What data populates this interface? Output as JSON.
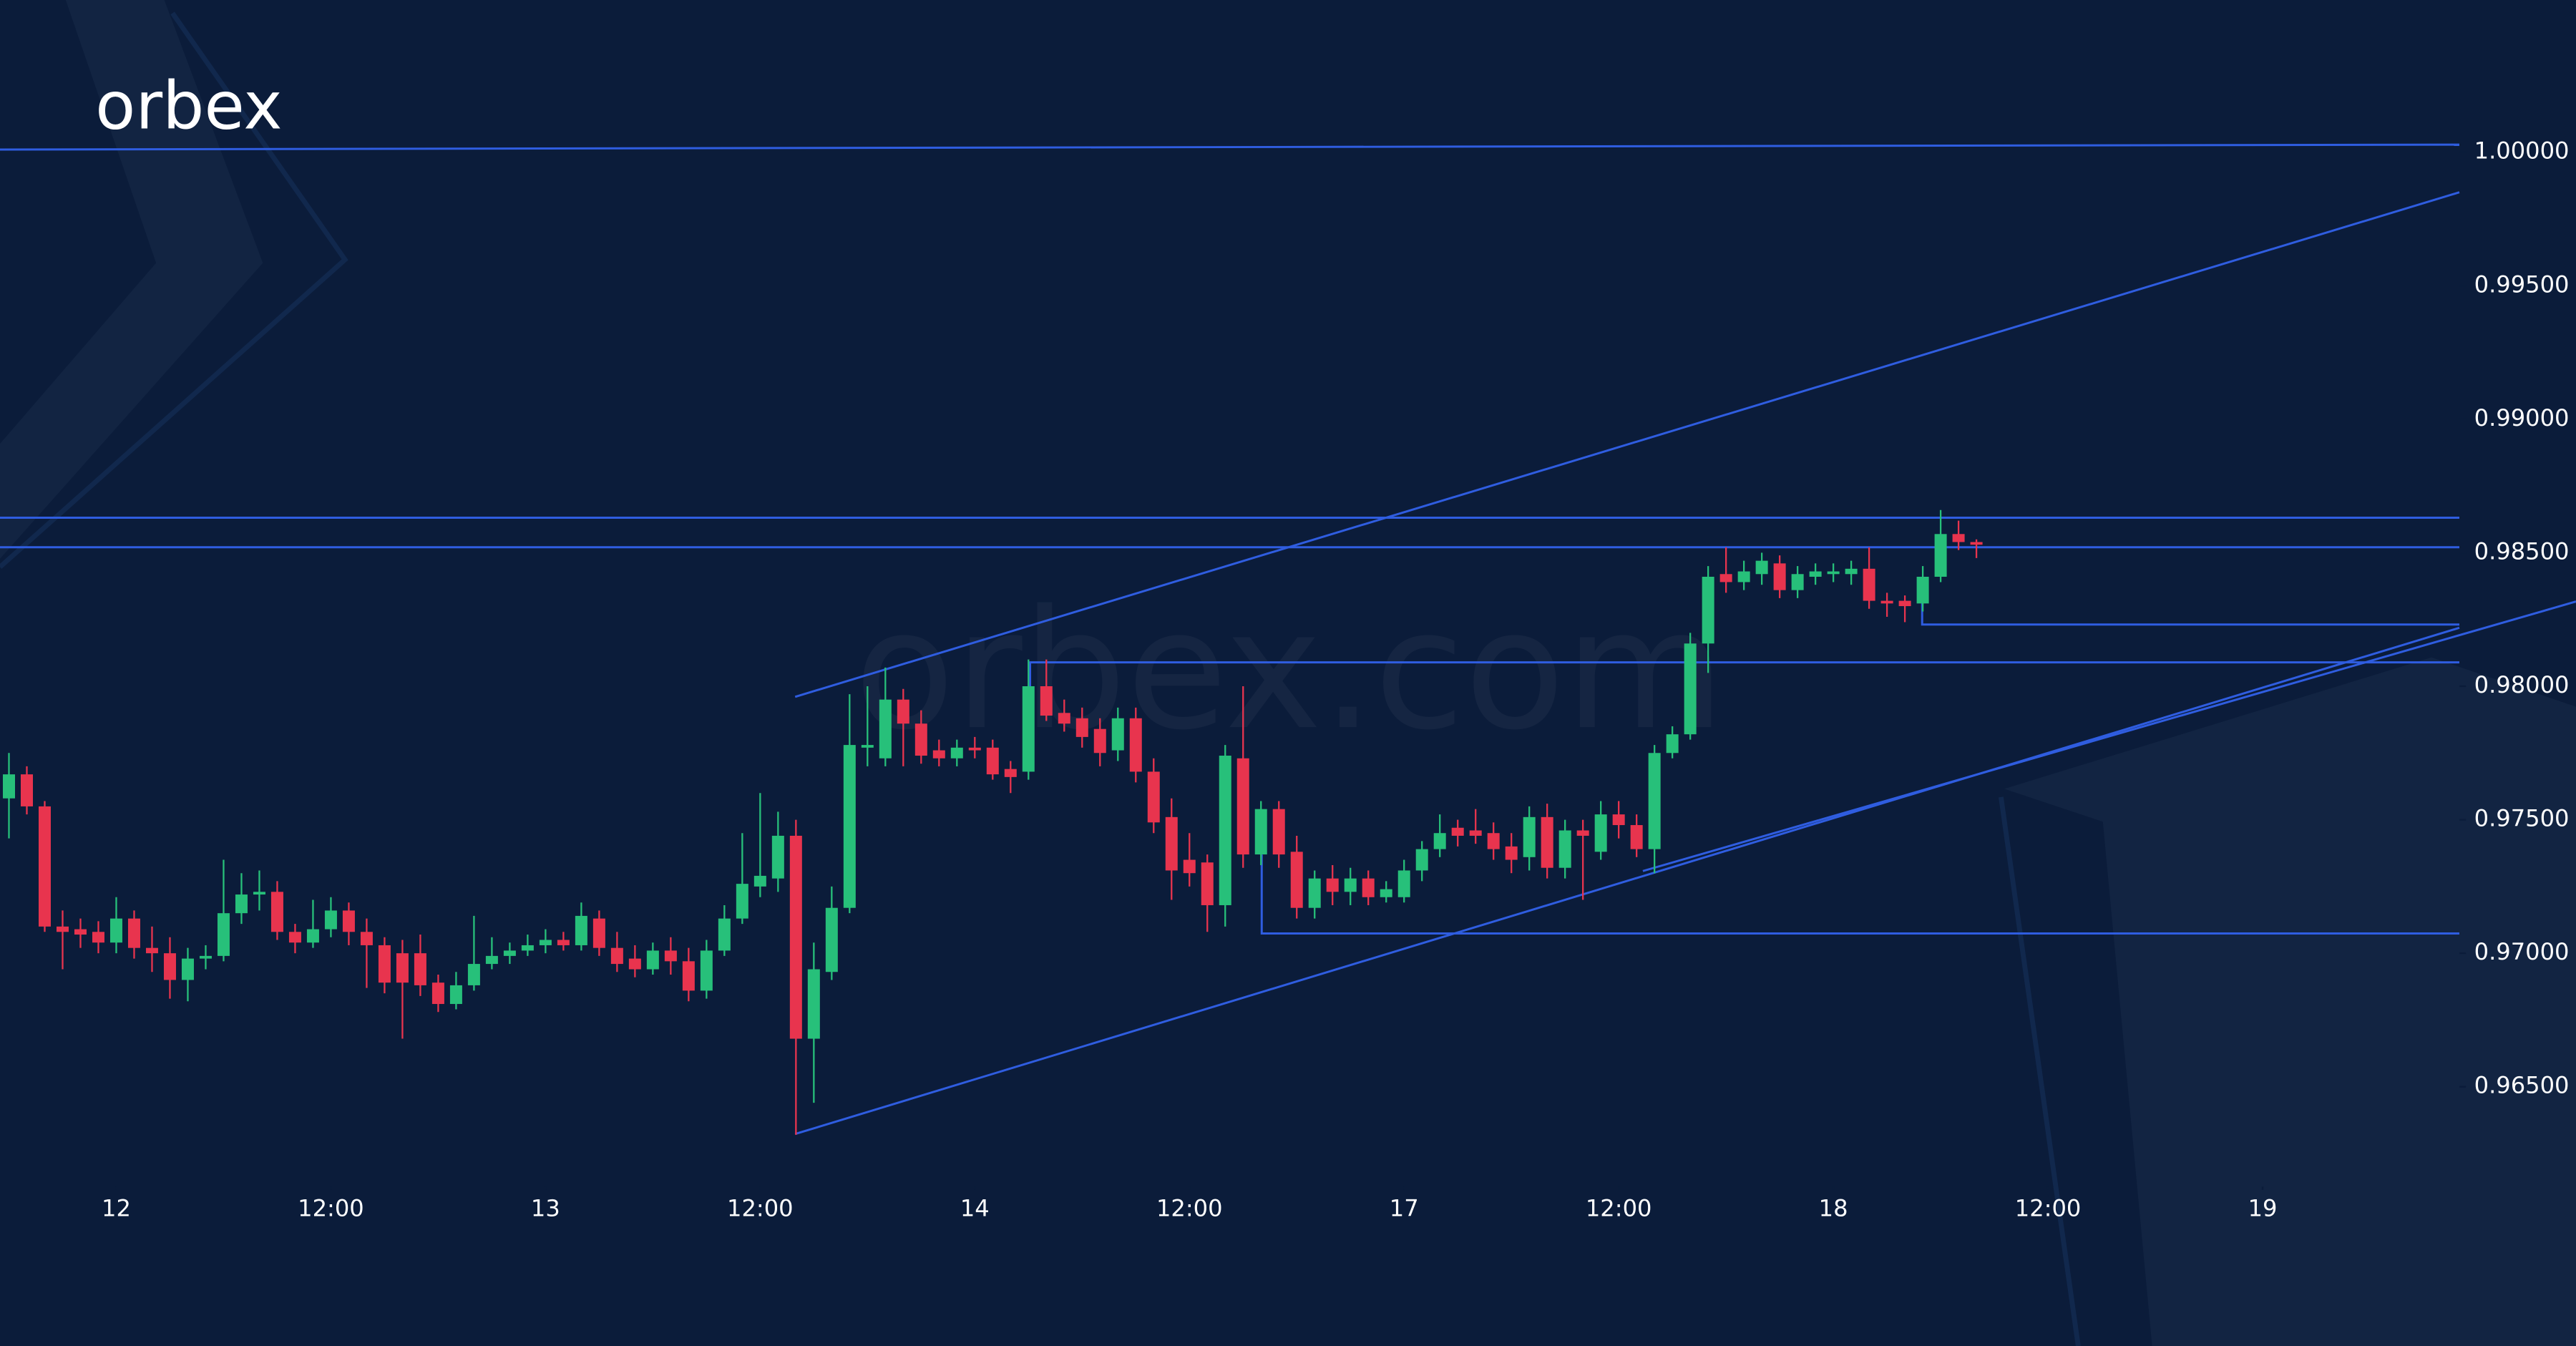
{
  "chart_data": {
    "type": "candlestick",
    "logo": "orbex",
    "watermark": "orbex.com",
    "up_color": "#27c07a",
    "down_color": "#e8344e",
    "x": [
      -6,
      -5,
      -4,
      -3,
      -2,
      -1,
      0,
      1,
      2,
      3,
      4,
      5,
      6,
      7,
      8,
      9,
      10,
      11,
      12,
      13,
      14,
      15,
      16,
      17,
      18,
      19,
      20,
      21,
      22,
      23,
      24,
      25,
      26,
      27,
      28,
      29,
      30,
      31,
      32,
      33,
      34,
      35,
      36,
      37,
      38,
      39,
      40,
      41,
      42,
      43,
      44,
      45,
      46,
      47,
      48,
      49,
      50,
      51,
      52,
      53,
      54,
      55,
      56,
      57,
      58,
      59,
      60,
      61,
      62,
      63,
      64,
      65,
      66,
      67,
      68,
      69,
      70,
      71,
      72,
      73,
      74,
      75,
      76,
      77,
      78,
      79,
      80,
      81,
      82,
      83,
      84,
      85,
      86,
      87,
      88,
      89,
      90,
      91,
      92,
      93,
      94,
      95,
      96,
      97,
      98,
      99,
      100,
      101,
      102,
      103,
      104
    ],
    "open": [
      0.9758,
      0.9767,
      0.9755,
      0.971,
      0.9709,
      0.9708,
      0.9704,
      0.9713,
      0.9702,
      0.97,
      0.969,
      0.9698,
      0.9699,
      0.9715,
      0.9722,
      0.9723,
      0.9708,
      0.9704,
      0.9709,
      0.9716,
      0.9708,
      0.9703,
      0.97,
      0.97,
      0.9689,
      0.9681,
      0.9688,
      0.9696,
      0.9699,
      0.9701,
      0.9703,
      0.9705,
      0.9703,
      0.9713,
      0.9702,
      0.9698,
      0.9694,
      0.9701,
      0.9697,
      0.9686,
      0.9701,
      0.9713,
      0.9725,
      0.9728,
      0.9744,
      0.9668,
      0.9693,
      0.9717,
      0.9777,
      0.9773,
      0.9795,
      0.9786,
      0.9776,
      0.9773,
      0.9777,
      0.9777,
      0.9769,
      0.9768,
      0.98,
      0.979,
      0.9788,
      0.9784,
      0.9776,
      0.9788,
      0.9768,
      0.9751,
      0.9735,
      0.9734,
      0.9718,
      0.9773,
      0.9737,
      0.9754,
      0.9738,
      0.9717,
      0.9728,
      0.9723,
      0.9728,
      0.9721,
      0.9721,
      0.9731,
      0.9739,
      0.9747,
      0.9746,
      0.9745,
      0.974,
      0.9736,
      0.9751,
      0.9732,
      0.9746,
      0.9738,
      0.9752,
      0.9748,
      0.9739,
      0.9775,
      0.9782,
      0.9816,
      0.9842,
      0.9839,
      0.9842,
      0.9846,
      0.9836,
      0.9841,
      0.9842,
      0.9842,
      0.9844,
      0.9832,
      0.9832,
      0.9831,
      0.9841,
      0.9857,
      0.9854
    ],
    "high": [
      0.9775,
      0.977,
      0.9757,
      0.9716,
      0.9713,
      0.9712,
      0.9721,
      0.9716,
      0.971,
      0.9706,
      0.9702,
      0.9703,
      0.9735,
      0.973,
      0.9731,
      0.9727,
      0.9711,
      0.972,
      0.9721,
      0.9719,
      0.9713,
      0.9706,
      0.9705,
      0.9707,
      0.9692,
      0.9693,
      0.9714,
      0.9706,
      0.9704,
      0.9707,
      0.9709,
      0.9708,
      0.9719,
      0.9716,
      0.9708,
      0.9703,
      0.9704,
      0.9706,
      0.9702,
      0.9705,
      0.9718,
      0.9745,
      0.976,
      0.9753,
      0.975,
      0.9704,
      0.9725,
      0.9797,
      0.98,
      0.9807,
      0.9799,
      0.9791,
      0.978,
      0.978,
      0.9781,
      0.978,
      0.9772,
      0.981,
      0.981,
      0.9795,
      0.9792,
      0.9788,
      0.9792,
      0.9792,
      0.9773,
      0.9758,
      0.9745,
      0.9737,
      0.9778,
      0.98,
      0.9757,
      0.9757,
      0.9744,
      0.9731,
      0.9733,
      0.9732,
      0.9731,
      0.9727,
      0.9735,
      0.9742,
      0.9752,
      0.975,
      0.9754,
      0.9749,
      0.9745,
      0.9755,
      0.9756,
      0.975,
      0.975,
      0.9757,
      0.9757,
      0.9752,
      0.9778,
      0.9785,
      0.982,
      0.9845,
      0.9852,
      0.9847,
      0.985,
      0.9849,
      0.9845,
      0.9846,
      0.9846,
      0.9847,
      0.9852,
      0.9835,
      0.9834,
      0.9845,
      0.9866,
      0.9862,
      0.9855
    ],
    "low": [
      0.9743,
      0.9752,
      0.9708,
      0.9694,
      0.9702,
      0.97,
      0.97,
      0.9698,
      0.9693,
      0.9683,
      0.9682,
      0.9694,
      0.9697,
      0.9711,
      0.9716,
      0.9705,
      0.97,
      0.9702,
      0.9706,
      0.9703,
      0.9687,
      0.9685,
      0.9668,
      0.9684,
      0.9678,
      0.9679,
      0.9686,
      0.9694,
      0.9696,
      0.9699,
      0.97,
      0.9701,
      0.9701,
      0.9699,
      0.9693,
      0.9691,
      0.9692,
      0.9692,
      0.9682,
      0.9683,
      0.9699,
      0.9711,
      0.9721,
      0.9723,
      0.9632,
      0.9644,
      0.969,
      0.9715,
      0.977,
      0.977,
      0.977,
      0.9771,
      0.977,
      0.977,
      0.9773,
      0.9765,
      0.976,
      0.9765,
      0.9787,
      0.9783,
      0.9777,
      0.977,
      0.9772,
      0.9764,
      0.9745,
      0.972,
      0.9725,
      0.9708,
      0.971,
      0.9732,
      0.9733,
      0.9732,
      0.9713,
      0.9713,
      0.9718,
      0.9718,
      0.9718,
      0.9719,
      0.9719,
      0.9727,
      0.9736,
      0.974,
      0.9741,
      0.9735,
      0.973,
      0.9731,
      0.9728,
      0.9728,
      0.972,
      0.9735,
      0.9743,
      0.9736,
      0.973,
      0.9773,
      0.978,
      0.9805,
      0.9835,
      0.9836,
      0.9838,
      0.9833,
      0.9833,
      0.9838,
      0.9839,
      0.9838,
      0.9829,
      0.9826,
      0.9824,
      0.9828,
      0.9839,
      0.9851,
      0.9848
    ],
    "close": [
      0.9767,
      0.9755,
      0.971,
      0.9708,
      0.9707,
      0.9704,
      0.9713,
      0.9702,
      0.97,
      0.969,
      0.9698,
      0.9699,
      0.9715,
      0.9722,
      0.9723,
      0.9708,
      0.9704,
      0.9709,
      0.9716,
      0.9708,
      0.9703,
      0.9689,
      0.9689,
      0.9688,
      0.9681,
      0.9688,
      0.9696,
      0.9699,
      0.9701,
      0.9703,
      0.9705,
      0.9703,
      0.9714,
      0.9702,
      0.9696,
      0.9694,
      0.9701,
      0.9697,
      0.9686,
      0.9701,
      0.9713,
      0.9726,
      0.9729,
      0.9744,
      0.9668,
      0.9694,
      0.9717,
      0.9778,
      0.9778,
      0.9795,
      0.9786,
      0.9774,
      0.9773,
      0.9777,
      0.9776,
      0.9767,
      0.9766,
      0.98,
      0.9789,
      0.9786,
      0.9781,
      0.9775,
      0.9788,
      0.9768,
      0.9749,
      0.9731,
      0.973,
      0.9718,
      0.9774,
      0.9737,
      0.9754,
      0.9737,
      0.9717,
      0.9728,
      0.9723,
      0.9728,
      0.9721,
      0.9724,
      0.9731,
      0.9739,
      0.9745,
      0.9744,
      0.9744,
      0.9739,
      0.9735,
      0.9751,
      0.9732,
      0.9746,
      0.9744,
      0.9752,
      0.9748,
      0.9739,
      0.9775,
      0.9782,
      0.9816,
      0.9841,
      0.9839,
      0.9843,
      0.9847,
      0.9836,
      0.9842,
      0.9843,
      0.9843,
      0.9844,
      0.9832,
      0.9831,
      0.983,
      0.9841,
      0.9857,
      0.9854,
      0.9853
    ],
    "xlim": [
      -6.5,
      131
    ],
    "ylim": [
      0.962,
      1.0057
    ],
    "xticks": [
      {
        "value": 0,
        "label": "12"
      },
      {
        "value": 12,
        "label": "12:00"
      },
      {
        "value": 24,
        "label": "13"
      },
      {
        "value": 36,
        "label": "12:00"
      },
      {
        "value": 48,
        "label": "14"
      },
      {
        "value": 60,
        "label": "12:00"
      },
      {
        "value": 72,
        "label": "17"
      },
      {
        "value": 84,
        "label": "12:00"
      },
      {
        "value": 96,
        "label": "18"
      },
      {
        "value": 108,
        "label": "12:00"
      },
      {
        "value": 120,
        "label": "19"
      }
    ],
    "yticks": [
      {
        "value": 0.965,
        "label": "0.96500"
      },
      {
        "value": 0.97,
        "label": "0.97000"
      },
      {
        "value": 0.975,
        "label": "0.97500"
      },
      {
        "value": 0.98,
        "label": "0.98000"
      },
      {
        "value": 0.985,
        "label": "0.98500"
      },
      {
        "value": 0.99,
        "label": "0.99000"
      },
      {
        "value": 0.995,
        "label": "0.99500"
      },
      {
        "value": 1.0,
        "label": "1.00000"
      }
    ]
  }
}
